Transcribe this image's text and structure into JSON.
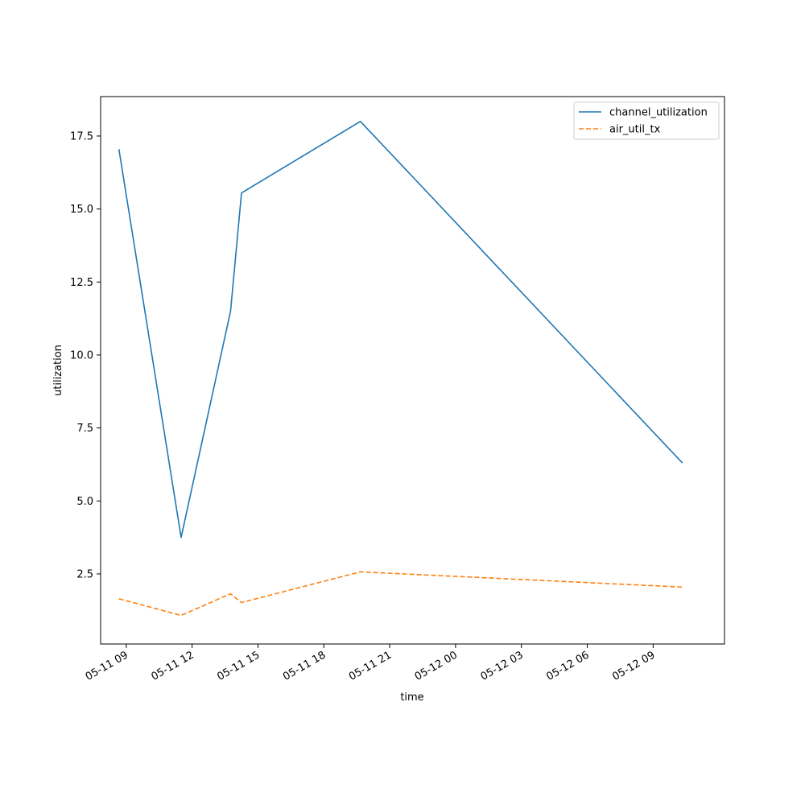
{
  "chart_data": {
    "type": "line",
    "title": "",
    "xlabel": "time",
    "ylabel": "utilization",
    "x_type": "datetime",
    "x_ticks": [
      "05-11 09",
      "05-11 12",
      "05-11 15",
      "05-11 18",
      "05-11 21",
      "05-12 00",
      "05-12 03",
      "05-12 06",
      "05-12 09"
    ],
    "y_ticks": [
      "2.5",
      "5.0",
      "7.5",
      "10.0",
      "12.5",
      "15.0",
      "17.5"
    ],
    "xlim": [
      "05-11 07:50",
      "05-12 12:15"
    ],
    "ylim": [
      0.1,
      18.85
    ],
    "grid": false,
    "legend_position": "upper right",
    "series": [
      {
        "name": "channel_utilization",
        "color": "#1f77b4",
        "style": "solid",
        "x": [
          "05-11 08:40",
          "05-11 11:30",
          "05-11 13:45",
          "05-11 14:15",
          "05-11 19:40",
          "05-12 10:20"
        ],
        "y": [
          17.05,
          3.75,
          11.5,
          15.55,
          18.0,
          6.3
        ]
      },
      {
        "name": "air_util_tx",
        "color": "#ff7f0e",
        "style": "dashed",
        "x": [
          "05-11 08:40",
          "05-11 11:30",
          "05-11 13:45",
          "05-11 14:15",
          "05-11 19:40",
          "05-12 10:20"
        ],
        "y": [
          1.65,
          1.08,
          1.82,
          1.52,
          2.57,
          2.05
        ]
      }
    ]
  }
}
